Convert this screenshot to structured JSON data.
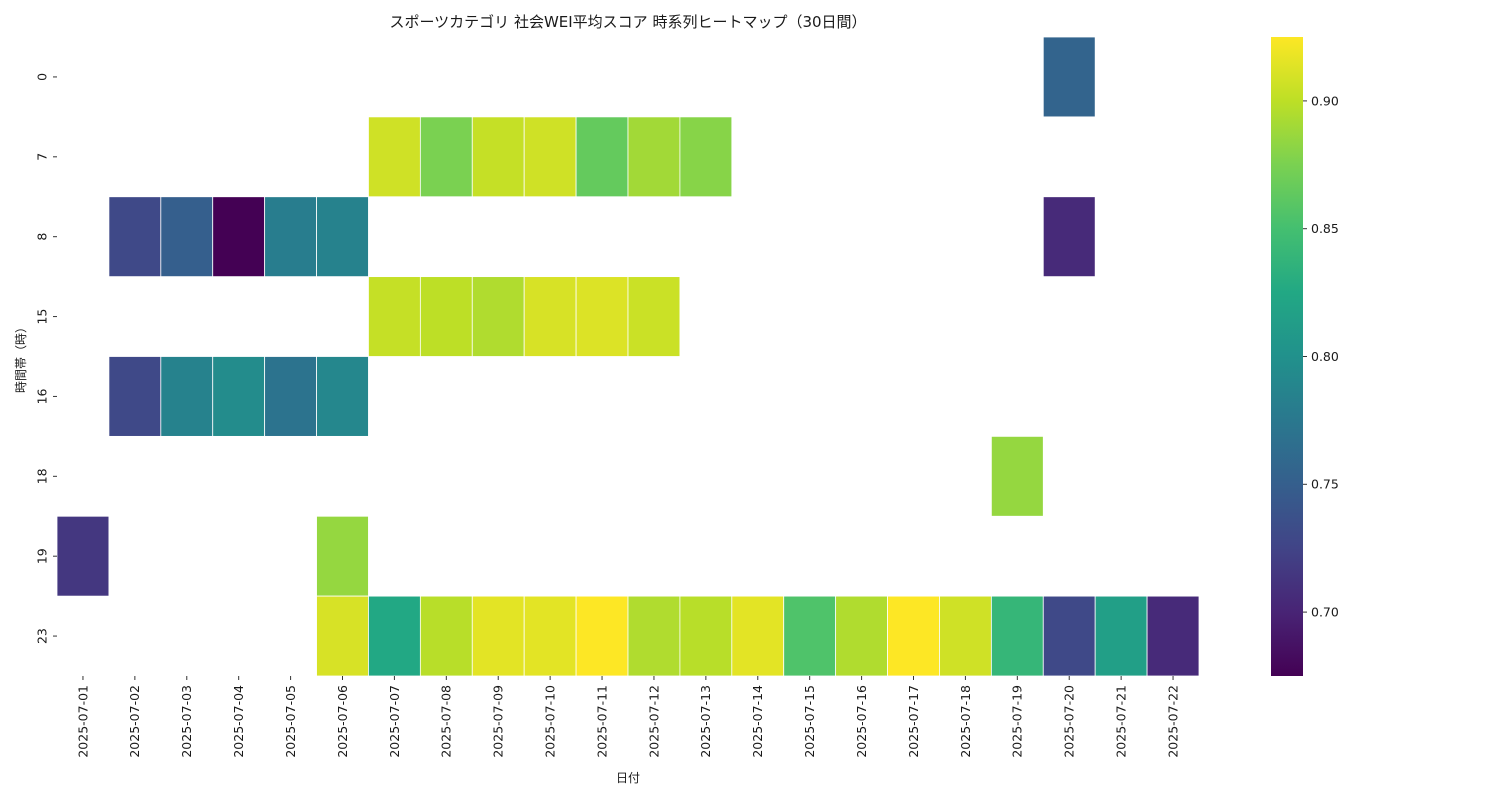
{
  "chart_data": {
    "type": "heatmap",
    "title": "スポーツカテゴリ 社会WEI平均スコア 時系列ヒートマップ（30日間）",
    "xlabel": "日付",
    "ylabel": "時間帯（時）",
    "x": [
      "2025-07-01",
      "2025-07-02",
      "2025-07-03",
      "2025-07-04",
      "2025-07-05",
      "2025-07-06",
      "2025-07-07",
      "2025-07-08",
      "2025-07-09",
      "2025-07-10",
      "2025-07-11",
      "2025-07-12",
      "2025-07-13",
      "2025-07-14",
      "2025-07-15",
      "2025-07-16",
      "2025-07-17",
      "2025-07-18",
      "2025-07-19",
      "2025-07-20",
      "2025-07-21",
      "2025-07-22"
    ],
    "y": [
      "0",
      "7",
      "8",
      "15",
      "16",
      "18",
      "19",
      "23"
    ],
    "colormap": "viridis",
    "vmin": 0.675,
    "vmax": 0.925,
    "colorbar_ticks": [
      0.7,
      0.75,
      0.8,
      0.85,
      0.9
    ],
    "colorbar_tick_labels": [
      "0.70",
      "0.75",
      "0.80",
      "0.85",
      "0.90"
    ],
    "values": [
      [
        null,
        null,
        null,
        null,
        null,
        null,
        null,
        null,
        null,
        null,
        null,
        null,
        null,
        null,
        null,
        null,
        null,
        null,
        null,
        0.755,
        null,
        null
      ],
      [
        null,
        null,
        null,
        null,
        null,
        null,
        0.907,
        0.875,
        0.903,
        0.907,
        0.865,
        0.89,
        0.88,
        null,
        null,
        null,
        null,
        null,
        null,
        null,
        null,
        null
      ],
      [
        null,
        0.73,
        0.75,
        0.675,
        0.78,
        0.785,
        null,
        null,
        null,
        null,
        null,
        null,
        null,
        null,
        null,
        null,
        null,
        null,
        null,
        0.705,
        null,
        null
      ],
      [
        null,
        null,
        null,
        null,
        null,
        null,
        0.903,
        0.9,
        0.895,
        0.91,
        0.912,
        0.905,
        null,
        null,
        null,
        null,
        null,
        null,
        null,
        null,
        null,
        null
      ],
      [
        null,
        0.73,
        0.785,
        0.795,
        0.77,
        0.79,
        null,
        null,
        null,
        null,
        null,
        null,
        null,
        null,
        null,
        null,
        null,
        null,
        null,
        null,
        null,
        null
      ],
      [
        null,
        null,
        null,
        null,
        null,
        null,
        null,
        null,
        null,
        null,
        null,
        null,
        null,
        null,
        null,
        null,
        null,
        null,
        0.885,
        null,
        null,
        null
      ],
      [
        0.715,
        null,
        null,
        null,
        null,
        0.885,
        null,
        null,
        null,
        null,
        null,
        null,
        null,
        null,
        null,
        null,
        null,
        null,
        null,
        null,
        null,
        null
      ],
      [
        null,
        null,
        null,
        null,
        null,
        0.91,
        0.825,
        0.898,
        0.915,
        0.915,
        0.925,
        0.895,
        0.898,
        0.915,
        0.855,
        0.895,
        0.925,
        0.907,
        0.84,
        0.73,
        0.815,
        0.705
      ]
    ]
  }
}
